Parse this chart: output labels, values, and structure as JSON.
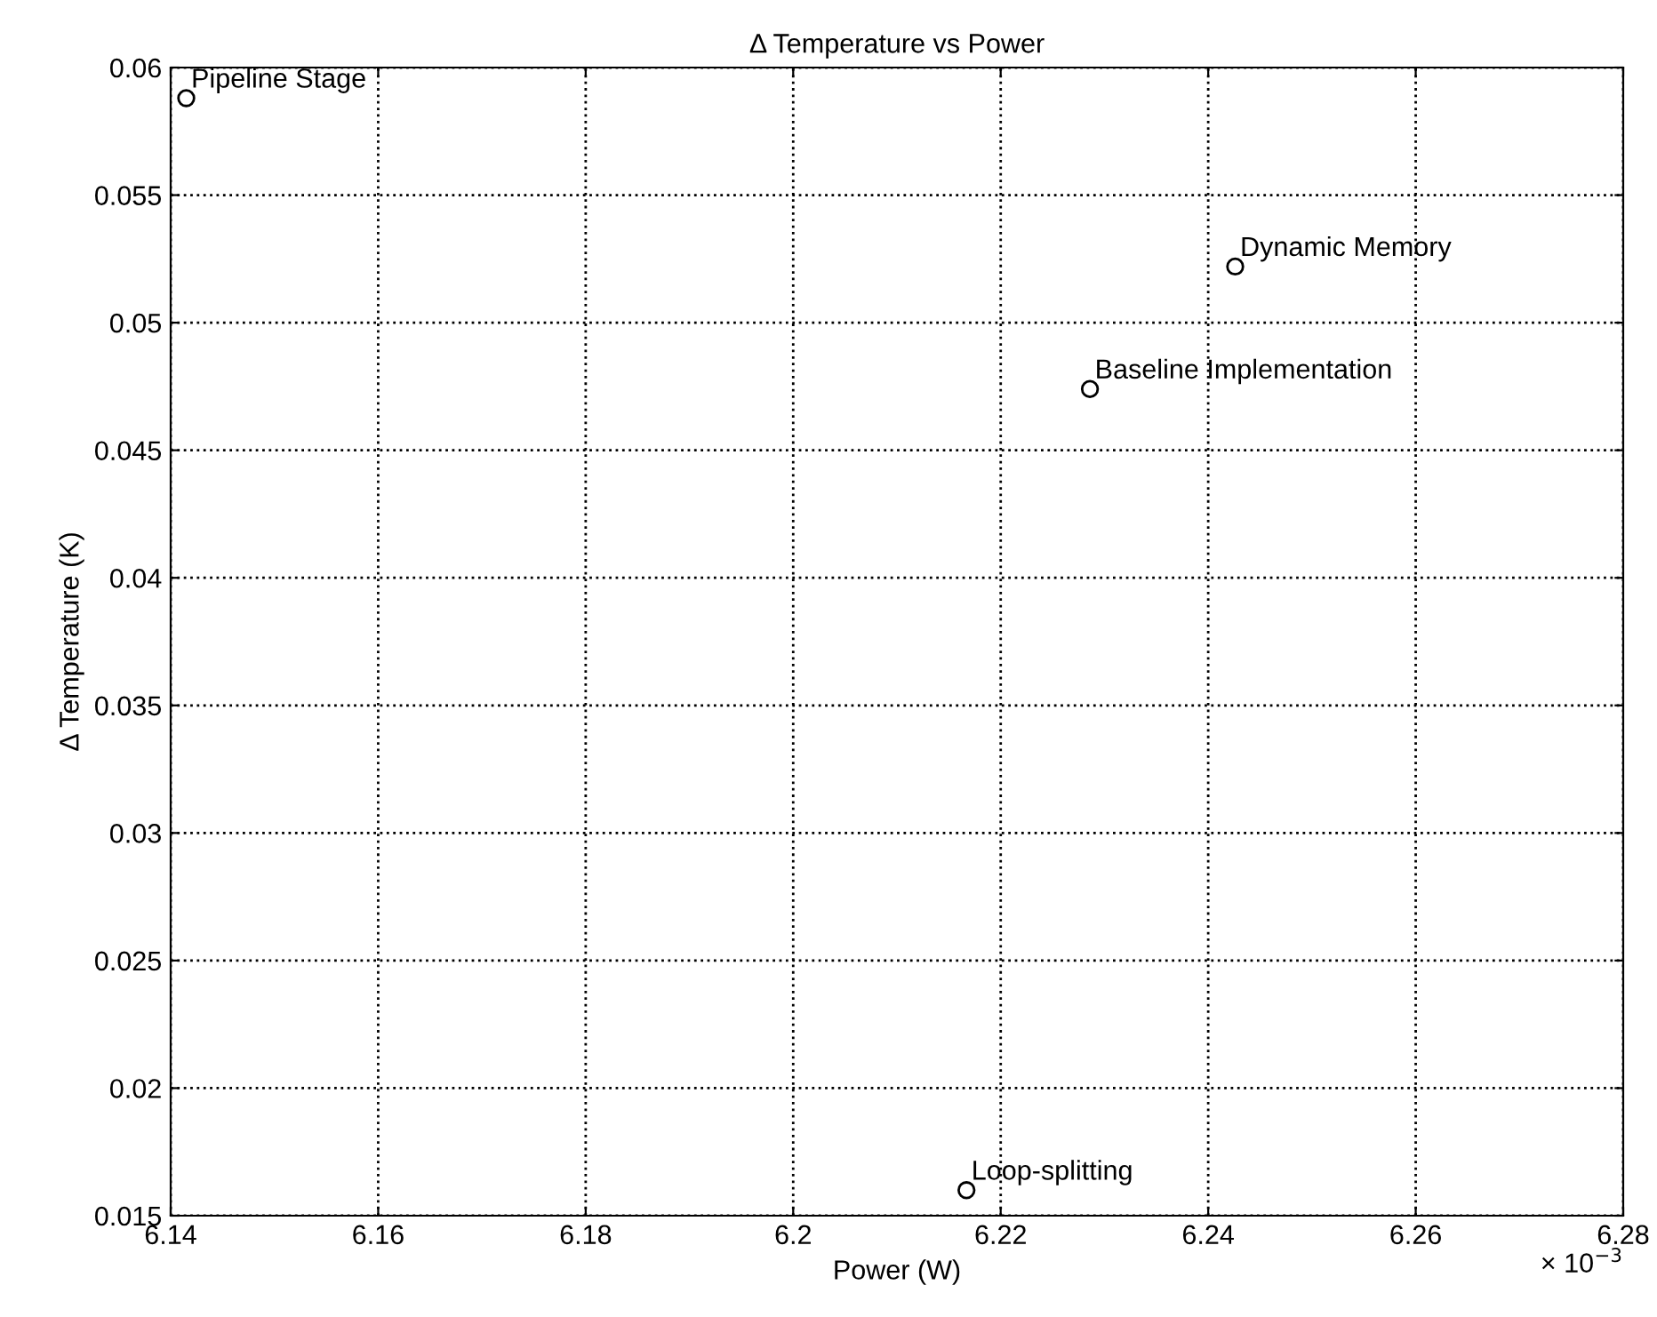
{
  "chart_data": {
    "type": "scatter",
    "title": "Δ Temperature vs Power",
    "xlabel": "Power (W)",
    "ylabel": "Δ Temperature (K)",
    "x": [
      6.1415,
      6.2167,
      6.2286,
      6.2426
    ],
    "series": [
      {
        "color": "#000000",
        "values": [
          0.0588,
          0.016,
          0.0474,
          0.0522
        ]
      }
    ],
    "marker": "circle",
    "xlim": [
      6.14,
      6.28
    ],
    "xticks": [
      6.14,
      6.16,
      6.18,
      6.2,
      6.22,
      6.24,
      6.26,
      6.28
    ],
    "ylim": [
      0.015,
      0.06
    ],
    "yticks": [
      0.015,
      0.02,
      0.025,
      0.03,
      0.035,
      0.04,
      0.045,
      0.05,
      0.055,
      0.06
    ],
    "grid": true,
    "annotations": [
      {
        "text": "Pipeline Stage",
        "x": 6.1415,
        "y": 0.0588
      },
      {
        "text": "Loop-splitting",
        "x": 6.2167,
        "y": 0.016
      },
      {
        "text": "Baseline Implementation",
        "x": 6.2286,
        "y": 0.0474
      },
      {
        "text": "Dynamic Memory",
        "x": 6.2426,
        "y": 0.0522
      },
      "× 10$^{−3}$"
    ]
  }
}
